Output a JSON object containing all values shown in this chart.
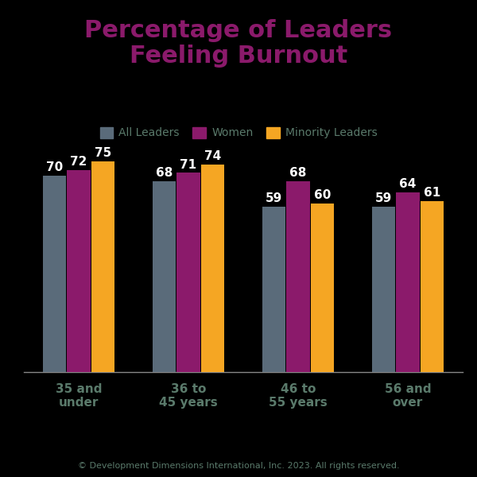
{
  "title": "Percentage of Leaders\nFeeling Burnout",
  "title_color": "#8B1A6B",
  "background_color": "#000000",
  "categories": [
    "35 and\nunder",
    "36 to\n45 years",
    "46 to\n55 years",
    "56 and\nover"
  ],
  "series": {
    "All Leaders": [
      70,
      68,
      59,
      59
    ],
    "Women": [
      72,
      71,
      68,
      64
    ],
    "Minority Leaders": [
      75,
      74,
      60,
      61
    ]
  },
  "colors": {
    "All Leaders": "#5a6b7a",
    "Women": "#8B1A6B",
    "Minority Leaders": "#F5A623"
  },
  "legend_labels": [
    "All Leaders",
    "Women",
    "Minority Leaders"
  ],
  "legend_colors": [
    "#5a6b7a",
    "#8B1A6B",
    "#F5A623"
  ],
  "value_label_color": "#ffffff",
  "axis_label_color": "#5a7a6b",
  "footer_text": "© Development Dimensions International, Inc. 2023. All rights reserved.",
  "footer_color": "#5a7a6b",
  "ylim": [
    0,
    85
  ],
  "bar_width": 0.22,
  "value_fontsize": 11,
  "label_fontsize": 11,
  "title_fontsize": 22,
  "legend_fontsize": 10,
  "footer_fontsize": 8
}
